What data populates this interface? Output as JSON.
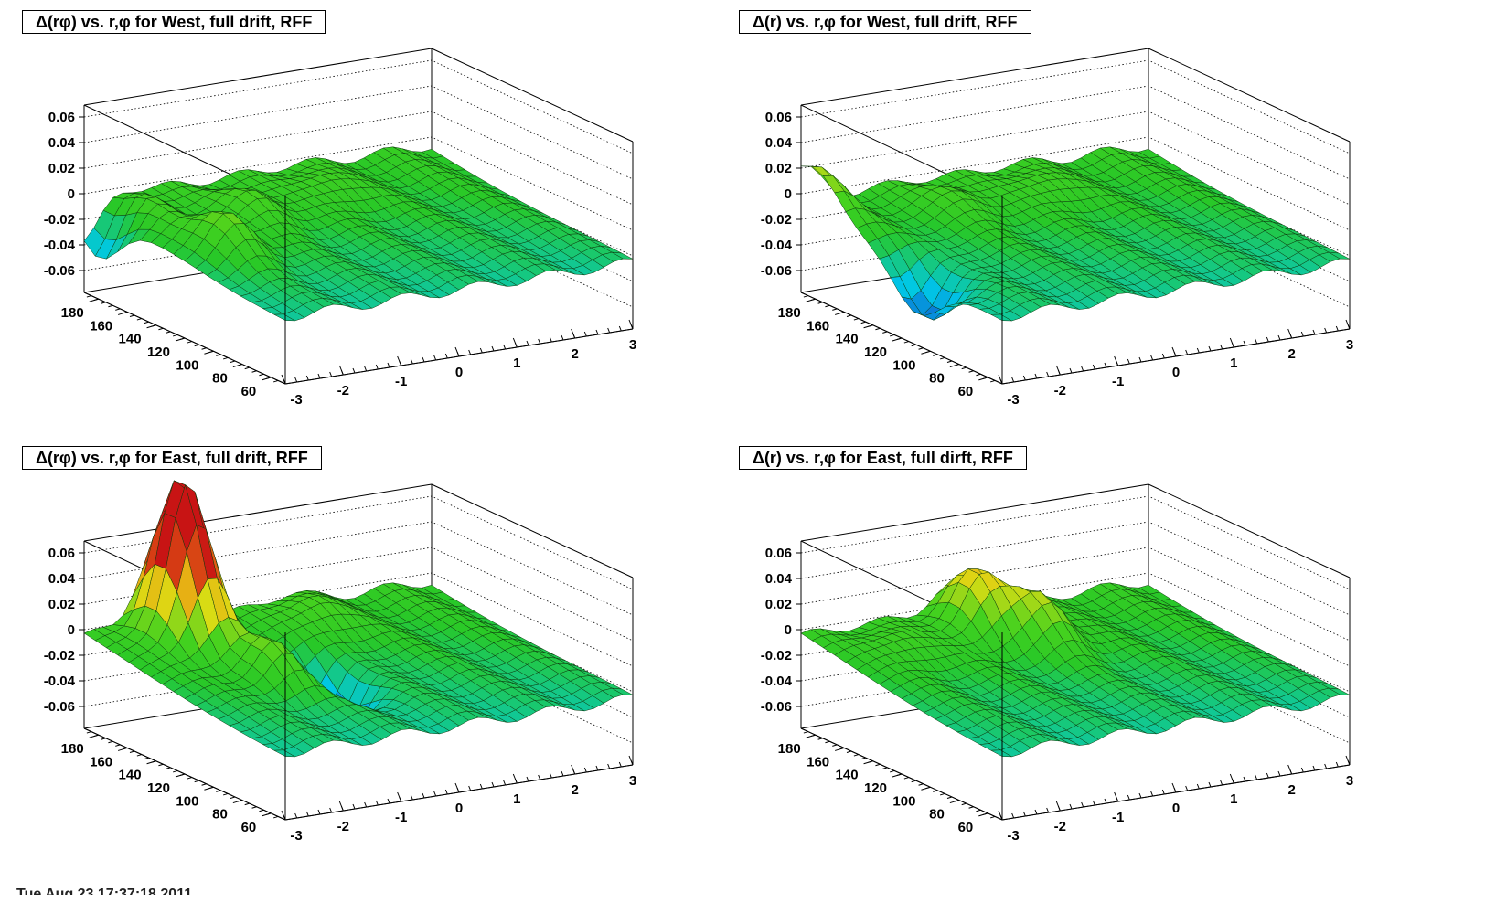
{
  "chart_data": [
    {
      "type": "surface",
      "title": "Δ(rφ) vs. r,φ for West, full drift, RFF",
      "xlabel": "",
      "ylabel": "",
      "zlabel": "",
      "x_ticks": [
        "-3",
        "-2",
        "-1",
        "0",
        "1",
        "2",
        "3"
      ],
      "y_ticks": [
        "60",
        "80",
        "100",
        "120",
        "140",
        "160",
        "180"
      ],
      "z_ticks": [
        "-0.06",
        "-0.04",
        "-0.02",
        "0",
        "0.02",
        "0.04",
        "0.06"
      ],
      "xlim": [
        -3,
        3
      ],
      "ylim": [
        50,
        190
      ],
      "zlim": [
        -0.07,
        0.07
      ],
      "grid": true,
      "features": [
        {
          "phi": -3.0,
          "r": 180,
          "dz": -0.045
        },
        {
          "phi": -2.5,
          "r": 170,
          "dz": 0.02
        },
        {
          "phi": -2.2,
          "r": 120,
          "dz": 0.03
        },
        {
          "phi": -1.0,
          "r": 150,
          "dz": 0.02
        },
        {
          "phi": 0.5,
          "r": 160,
          "dz": 0.015
        }
      ]
    },
    {
      "type": "surface",
      "title": "Δ(r) vs. r,φ for West, full drift, RFF",
      "xlabel": "",
      "ylabel": "",
      "zlabel": "",
      "x_ticks": [
        "-3",
        "-2",
        "-1",
        "0",
        "1",
        "2",
        "3"
      ],
      "y_ticks": [
        "60",
        "80",
        "100",
        "120",
        "140",
        "160",
        "180"
      ],
      "z_ticks": [
        "-0.06",
        "-0.04",
        "-0.02",
        "0",
        "0.02",
        "0.04",
        "0.06"
      ],
      "xlim": [
        -3,
        3
      ],
      "ylim": [
        50,
        190
      ],
      "zlim": [
        -0.07,
        0.07
      ],
      "grid": true,
      "features": [
        {
          "phi": -3.0,
          "r": 180,
          "dz": 0.03
        },
        {
          "phi": -2.8,
          "r": 110,
          "dz": -0.04
        },
        {
          "phi": -1.0,
          "r": 160,
          "dz": 0.015
        },
        {
          "phi": 0.5,
          "r": 160,
          "dz": 0.015
        }
      ]
    },
    {
      "type": "surface",
      "title": "Δ(rφ) vs. r,φ for East, full drift, RFF",
      "xlabel": "",
      "ylabel": "",
      "zlabel": "",
      "x_ticks": [
        "-3",
        "-2",
        "-1",
        "0",
        "1",
        "2",
        "3"
      ],
      "y_ticks": [
        "60",
        "80",
        "100",
        "120",
        "140",
        "160",
        "180"
      ],
      "z_ticks": [
        "-0.06",
        "-0.04",
        "-0.02",
        "0",
        "0.02",
        "0.04",
        "0.06"
      ],
      "xlim": [
        -3,
        3
      ],
      "ylim": [
        50,
        190
      ],
      "zlim": [
        -0.07,
        0.07
      ],
      "grid": true,
      "features": [
        {
          "phi": -1.8,
          "r": 170,
          "dz": 0.13
        },
        {
          "phi": -0.5,
          "r": 120,
          "dz": -0.05
        },
        {
          "phi": -1.5,
          "r": 120,
          "dz": 0.03
        },
        {
          "phi": 0.5,
          "r": 170,
          "dz": 0.02
        }
      ]
    },
    {
      "type": "surface",
      "title": "Δ(r) vs. r,φ for East, full dirft, RFF",
      "xlabel": "",
      "ylabel": "",
      "zlabel": "",
      "x_ticks": [
        "-3",
        "-2",
        "-1",
        "0",
        "1",
        "2",
        "3"
      ],
      "y_ticks": [
        "60",
        "80",
        "100",
        "120",
        "140",
        "160",
        "180"
      ],
      "z_ticks": [
        "-0.06",
        "-0.04",
        "-0.02",
        "0",
        "0.02",
        "0.04",
        "0.06"
      ],
      "xlim": [
        -3,
        3
      ],
      "ylim": [
        50,
        190
      ],
      "zlim": [
        -0.07,
        0.07
      ],
      "grid": true,
      "features": [
        {
          "phi": -0.5,
          "r": 170,
          "dz": 0.045
        },
        {
          "phi": 0.2,
          "r": 150,
          "dz": 0.035
        },
        {
          "phi": -2.0,
          "r": 160,
          "dz": 0.015
        }
      ]
    }
  ],
  "footer": {
    "date": "Tue Aug 23 17:37:18 2011"
  }
}
